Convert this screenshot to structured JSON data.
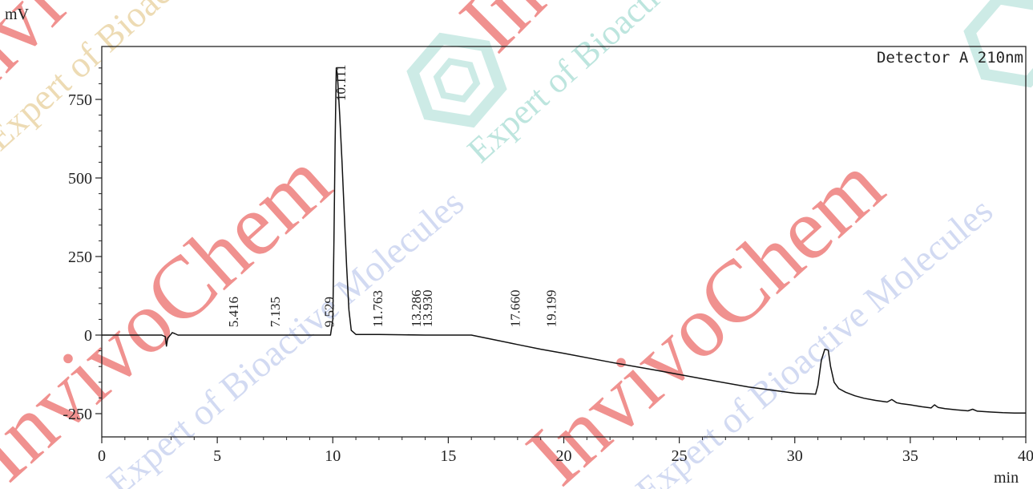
{
  "chart_data": {
    "type": "line",
    "title": "",
    "xlabel": "min",
    "ylabel": "mV",
    "xlim": [
      0,
      40
    ],
    "ylim": [
      -290,
      920
    ],
    "x_ticks": [
      0,
      5,
      10,
      15,
      20,
      25,
      30,
      35,
      40
    ],
    "y_ticks": [
      -250,
      0,
      250,
      500,
      750
    ],
    "legend": "Detector A 210nm",
    "grid": false,
    "series": [
      {
        "name": "Detector A 210nm",
        "x": [
          0,
          2.6,
          2.75,
          2.8,
          2.85,
          3.0,
          3.05,
          3.15,
          3.3,
          5.0,
          7.0,
          9.0,
          9.9,
          10.0,
          10.05,
          10.1,
          10.15,
          10.2,
          10.3,
          10.4,
          10.5,
          10.6,
          10.7,
          10.8,
          11.0,
          12.0,
          13.0,
          14.0,
          15.0,
          16.0,
          17.0,
          18.0,
          19.0,
          20.0,
          22.0,
          24.0,
          26.0,
          28.0,
          30.0,
          30.9,
          31.0,
          31.15,
          31.3,
          31.45,
          31.55,
          31.7,
          31.9,
          32.2,
          32.6,
          33.0,
          33.5,
          34.0,
          34.2,
          34.3,
          34.4,
          34.6,
          35.0,
          35.5,
          35.9,
          36.05,
          36.2,
          36.5,
          37.0,
          37.5,
          37.7,
          37.9,
          38.5,
          39.0,
          39.5,
          40.0
        ],
        "y": [
          0,
          0,
          -5,
          -35,
          -10,
          3,
          8,
          5,
          0,
          0,
          0,
          0,
          0,
          50,
          300,
          600,
          850,
          830,
          700,
          550,
          380,
          220,
          80,
          15,
          2,
          2,
          1,
          0,
          0,
          0,
          -15,
          -30,
          -45,
          -58,
          -86,
          -112,
          -139,
          -165,
          -185,
          -188,
          -160,
          -80,
          -45,
          -48,
          -100,
          -150,
          -170,
          -182,
          -193,
          -201,
          -208,
          -213,
          -205,
          -210,
          -215,
          -218,
          -222,
          -228,
          -232,
          -222,
          -230,
          -234,
          -238,
          -241,
          -236,
          -242,
          -245,
          -247,
          -248,
          -248
        ]
      }
    ],
    "peak_labels": [
      "5.416",
      "7.135",
      "9.529",
      "10.111",
      "11.763",
      "13.286",
      "13.930",
      "17.660",
      "19.199"
    ],
    "peak_label_positions": [
      5.9,
      7.7,
      10.05,
      10.55,
      12.15,
      13.8,
      14.3,
      18.1,
      19.65
    ],
    "peak_label_bottoms": [
      25,
      25,
      25,
      745,
      25,
      25,
      25,
      25,
      25
    ]
  },
  "watermark": {
    "brand": "InvivoChem",
    "tagline": "Expert of Bioactive Molecules",
    "colors": {
      "primary": "#e53935",
      "secondary": "#d8b15a",
      "accent": "#90a4e0",
      "logo": "#6fc7b7"
    }
  }
}
